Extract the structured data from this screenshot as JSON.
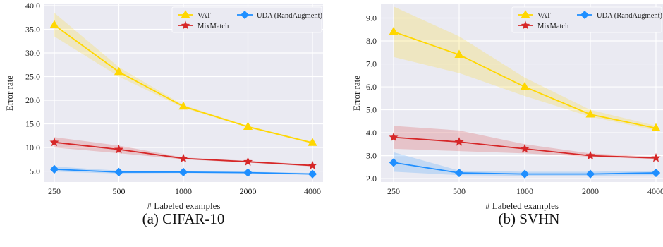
{
  "chart_data": [
    {
      "type": "line",
      "caption": "(a) CIFAR-10",
      "xlabel": "# Labeled examples",
      "ylabel": "Error rate",
      "categories": [
        "250",
        "500",
        "1000",
        "2000",
        "4000"
      ],
      "ylim": [
        2.7,
        40.3
      ],
      "yticks": [
        "5.0",
        "10.0",
        "15.0",
        "20.0",
        "25.0",
        "30.0",
        "35.0",
        "40.0"
      ],
      "grid": true,
      "legend_position": "top-right",
      "series": [
        {
          "name": "VAT",
          "color": "#FFD700",
          "marker": "triangle",
          "values": [
            35.9,
            26.0,
            18.7,
            14.4,
            11.0
          ],
          "band_low": [
            33.5,
            25.0,
            18.4,
            14.2,
            10.8
          ],
          "band_high": [
            38.5,
            27.0,
            19.0,
            14.6,
            11.2
          ]
        },
        {
          "name": "MixMatch",
          "color": "#D62728",
          "marker": "star",
          "values": [
            11.1,
            9.6,
            7.7,
            7.0,
            6.2
          ],
          "band_low": [
            10.0,
            8.8,
            7.5,
            6.8,
            6.0
          ],
          "band_high": [
            12.2,
            10.4,
            7.9,
            7.2,
            6.4
          ]
        },
        {
          "name": "UDA (RandAugment)",
          "color": "#1F8FFF",
          "marker": "diamond",
          "values": [
            5.4,
            4.8,
            4.8,
            4.7,
            4.4
          ],
          "band_low": [
            4.9,
            4.5,
            4.6,
            4.5,
            4.2
          ],
          "band_high": [
            6.0,
            5.1,
            5.0,
            4.9,
            4.6
          ]
        }
      ]
    },
    {
      "type": "line",
      "caption": "(b) SVHN",
      "xlabel": "# Labeled examples",
      "ylabel": "Error rate",
      "categories": [
        "250",
        "500",
        "1000",
        "2000",
        "4000"
      ],
      "ylim": [
        1.85,
        9.6
      ],
      "yticks": [
        "2.0",
        "3.0",
        "4.0",
        "5.0",
        "6.0",
        "7.0",
        "8.0",
        "9.0"
      ],
      "grid": true,
      "legend_position": "top-right",
      "series": [
        {
          "name": "VAT",
          "color": "#FFD700",
          "marker": "triangle",
          "values": [
            8.4,
            7.4,
            6.0,
            4.8,
            4.2
          ],
          "band_low": [
            7.3,
            6.6,
            5.6,
            4.7,
            4.1
          ],
          "band_high": [
            9.5,
            8.2,
            6.4,
            5.0,
            4.3
          ]
        },
        {
          "name": "MixMatch",
          "color": "#D62728",
          "marker": "star",
          "values": [
            3.8,
            3.6,
            3.3,
            3.0,
            2.9
          ],
          "band_low": [
            3.3,
            3.2,
            3.1,
            2.95,
            2.85
          ],
          "band_high": [
            4.3,
            4.1,
            3.5,
            3.1,
            2.95
          ]
        },
        {
          "name": "UDA (RandAugment)",
          "color": "#1F8FFF",
          "marker": "diamond",
          "values": [
            2.7,
            2.25,
            2.2,
            2.2,
            2.25
          ],
          "band_low": [
            2.3,
            2.15,
            2.12,
            2.12,
            2.15
          ],
          "band_high": [
            3.15,
            2.35,
            2.3,
            2.3,
            2.35
          ]
        }
      ]
    }
  ]
}
